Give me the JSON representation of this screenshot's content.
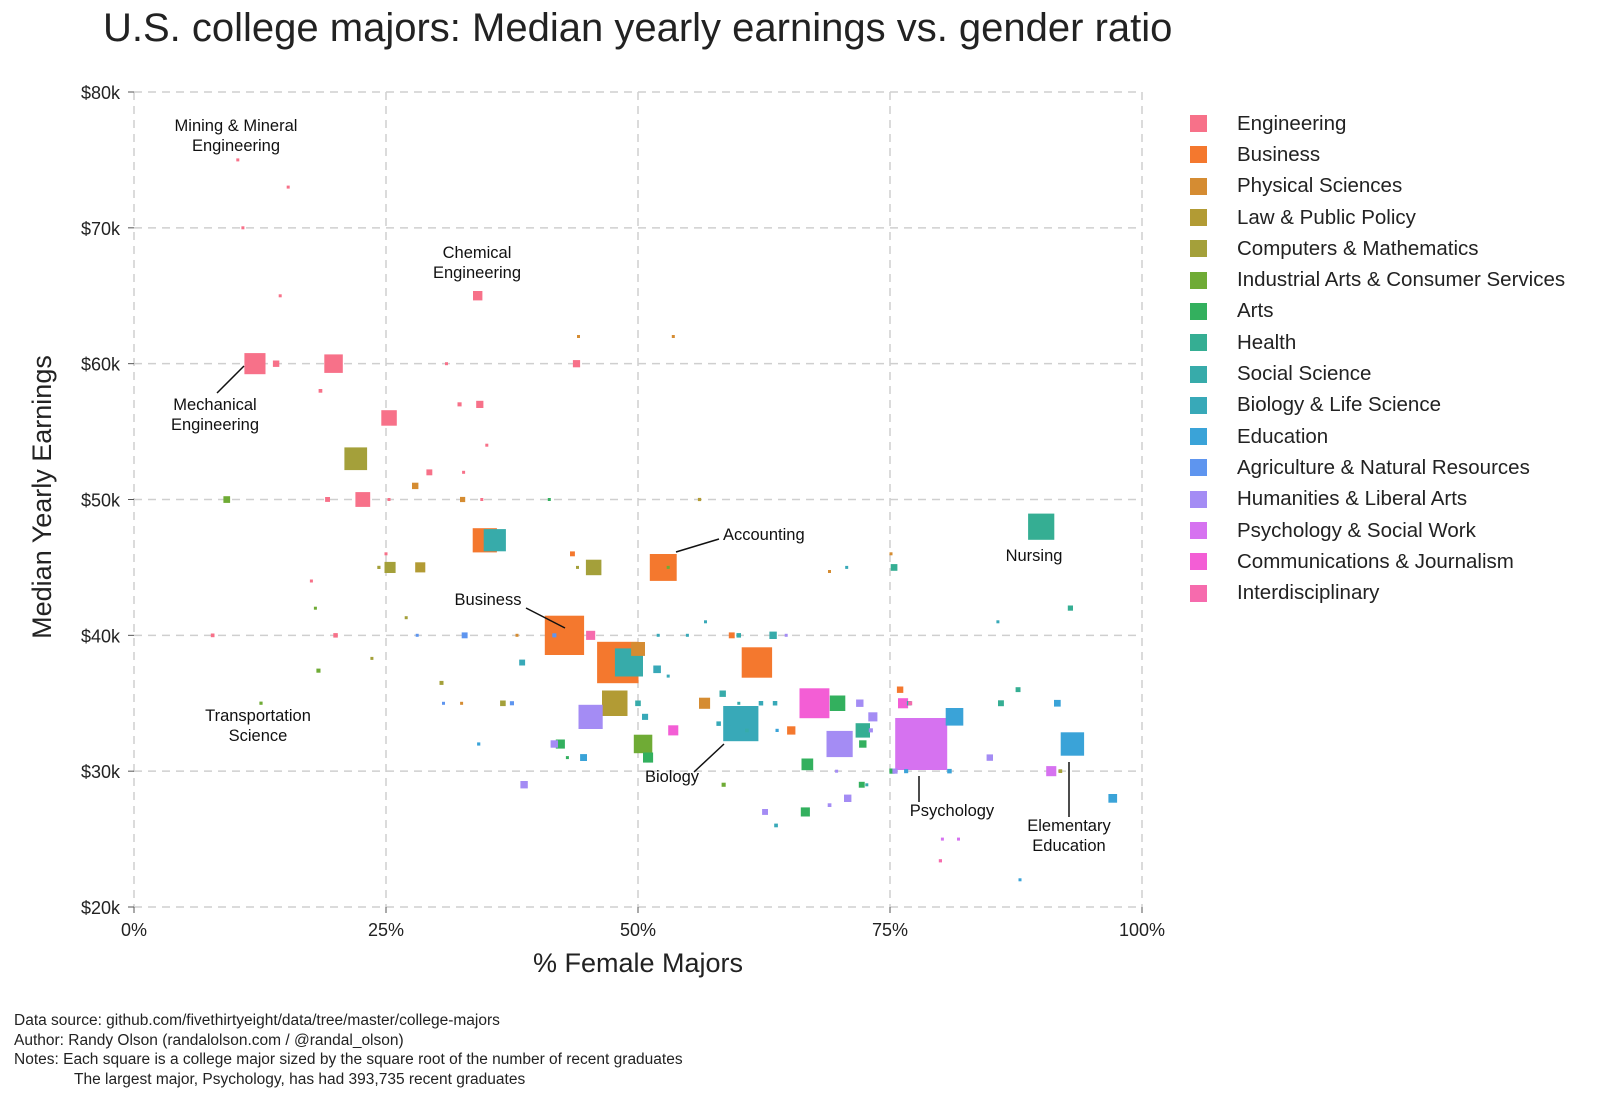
{
  "chart_data": {
    "type": "scatter",
    "title": "U.S. college majors: Median yearly earnings vs. gender ratio",
    "xlabel": "% Female Majors",
    "ylabel": "Median Yearly Earnings",
    "xlim": [
      0,
      100
    ],
    "ylim": [
      20000,
      80000
    ],
    "x_ticks": [
      0,
      25,
      50,
      75,
      100
    ],
    "x_tick_labels": [
      "0%",
      "25%",
      "50%",
      "75%",
      "100%"
    ],
    "y_ticks": [
      20000,
      30000,
      40000,
      50000,
      60000,
      70000,
      80000
    ],
    "y_tick_labels": [
      "$20k",
      "$30k",
      "$40k",
      "$50k",
      "$60k",
      "$70k",
      "$80k"
    ],
    "grid": true,
    "legend_position": "right",
    "size_encoding": "square side proportional to square root of recent graduates",
    "categories": [
      {
        "name": "Engineering",
        "color": "#f77189"
      },
      {
        "name": "Business",
        "color": "#f4782e"
      },
      {
        "name": "Physical Sciences",
        "color": "#d58c32"
      },
      {
        "name": "Law & Public Policy",
        "color": "#b29b34"
      },
      {
        "name": "Computers & Mathematics",
        "color": "#a4a03a"
      },
      {
        "name": "Industrial Arts & Consumer Services",
        "color": "#6fab35"
      },
      {
        "name": "Arts",
        "color": "#33b05e"
      },
      {
        "name": "Health",
        "color": "#35ae93"
      },
      {
        "name": "Social Science",
        "color": "#37abaa"
      },
      {
        "name": "Biology & Life Science",
        "color": "#38a9b8"
      },
      {
        "name": "Education",
        "color": "#3aa3d8"
      },
      {
        "name": "Agriculture & Natural Resources",
        "color": "#5e95ef"
      },
      {
        "name": "Humanities & Liberal Arts",
        "color": "#a48cf4"
      },
      {
        "name": "Psychology & Social Work",
        "color": "#d672f0"
      },
      {
        "name": "Communications & Journalism",
        "color": "#f35ed5"
      },
      {
        "name": "Interdisciplinary",
        "color": "#f66bad"
      }
    ],
    "points": [
      {
        "x": 10.3,
        "y": 75000,
        "cat": 0,
        "grads": 300
      },
      {
        "x": 15.3,
        "y": 73000,
        "cat": 0,
        "grads": 250
      },
      {
        "x": 10.8,
        "y": 70000,
        "cat": 0,
        "grads": 500
      },
      {
        "x": 14.5,
        "y": 65000,
        "cat": 0,
        "grads": 600
      },
      {
        "x": 34.1,
        "y": 65000,
        "cat": 0,
        "grads": 13000
      },
      {
        "x": 44.1,
        "y": 62000,
        "cat": 2,
        "grads": 900
      },
      {
        "x": 53.5,
        "y": 62000,
        "cat": 2,
        "grads": 600
      },
      {
        "x": 12.0,
        "y": 60000,
        "cat": 0,
        "grads": 65000
      },
      {
        "x": 14.1,
        "y": 60000,
        "cat": 0,
        "grads": 6000
      },
      {
        "x": 19.8,
        "y": 60000,
        "cat": 0,
        "grads": 50000
      },
      {
        "x": 31.0,
        "y": 60000,
        "cat": 0,
        "grads": 1000
      },
      {
        "x": 43.9,
        "y": 60000,
        "cat": 0,
        "grads": 7500
      },
      {
        "x": 18.5,
        "y": 58000,
        "cat": 0,
        "grads": 2000
      },
      {
        "x": 32.3,
        "y": 57000,
        "cat": 0,
        "grads": 2500
      },
      {
        "x": 34.3,
        "y": 57000,
        "cat": 0,
        "grads": 7500
      },
      {
        "x": 25.3,
        "y": 56000,
        "cat": 0,
        "grads": 35000
      },
      {
        "x": 35.0,
        "y": 54000,
        "cat": 0,
        "grads": 800
      },
      {
        "x": 22.0,
        "y": 53000,
        "cat": 4,
        "grads": 75000
      },
      {
        "x": 29.3,
        "y": 52000,
        "cat": 0,
        "grads": 5000
      },
      {
        "x": 32.7,
        "y": 52000,
        "cat": 0,
        "grads": 1000
      },
      {
        "x": 27.9,
        "y": 51000,
        "cat": 2,
        "grads": 6000
      },
      {
        "x": 9.2,
        "y": 50000,
        "cat": 5,
        "grads": 6500
      },
      {
        "x": 19.2,
        "y": 50000,
        "cat": 0,
        "grads": 3500
      },
      {
        "x": 22.7,
        "y": 50000,
        "cat": 0,
        "grads": 32000
      },
      {
        "x": 25.3,
        "y": 50000,
        "cat": 0,
        "grads": 1000
      },
      {
        "x": 32.6,
        "y": 50000,
        "cat": 2,
        "grads": 4000
      },
      {
        "x": 34.5,
        "y": 50000,
        "cat": 0,
        "grads": 1000
      },
      {
        "x": 41.2,
        "y": 50000,
        "cat": 6,
        "grads": 800
      },
      {
        "x": 56.1,
        "y": 50000,
        "cat": 3,
        "grads": 1500
      },
      {
        "x": 34.8,
        "y": 47000,
        "cat": 1,
        "grads": 85000
      },
      {
        "x": 35.8,
        "y": 47000,
        "cat": 8,
        "grads": 72000
      },
      {
        "x": 52.5,
        "y": 45000,
        "cat": 1,
        "grads": 105000
      },
      {
        "x": 25.0,
        "y": 46000,
        "cat": 0,
        "grads": 1200
      },
      {
        "x": 43.5,
        "y": 46000,
        "cat": 1,
        "grads": 3500
      },
      {
        "x": 75.1,
        "y": 46000,
        "cat": 2,
        "grads": 500
      },
      {
        "x": 90.0,
        "y": 48000,
        "cat": 7,
        "grads": 100000
      },
      {
        "x": 24.3,
        "y": 45000,
        "cat": 4,
        "grads": 1500
      },
      {
        "x": 25.4,
        "y": 45000,
        "cat": 4,
        "grads": 18000
      },
      {
        "x": 28.4,
        "y": 45000,
        "cat": 3,
        "grads": 15000
      },
      {
        "x": 44.0,
        "y": 45000,
        "cat": 4,
        "grads": 1000
      },
      {
        "x": 45.6,
        "y": 45000,
        "cat": 4,
        "grads": 35000
      },
      {
        "x": 53.0,
        "y": 45000,
        "cat": 5,
        "grads": 700
      },
      {
        "x": 69.0,
        "y": 44700,
        "cat": 2,
        "grads": 600
      },
      {
        "x": 70.7,
        "y": 45000,
        "cat": 9,
        "grads": 300
      },
      {
        "x": 75.4,
        "y": 45000,
        "cat": 7,
        "grads": 6500
      },
      {
        "x": 17.6,
        "y": 44000,
        "cat": 0,
        "grads": 800
      },
      {
        "x": 18.0,
        "y": 42000,
        "cat": 5,
        "grads": 200
      },
      {
        "x": 27.0,
        "y": 41300,
        "cat": 4,
        "grads": 1200
      },
      {
        "x": 56.7,
        "y": 41000,
        "cat": 9,
        "grads": 700
      },
      {
        "x": 85.7,
        "y": 41000,
        "cat": 9,
        "grads": 300
      },
      {
        "x": 92.9,
        "y": 42000,
        "cat": 7,
        "grads": 4000
      },
      {
        "x": 7.8,
        "y": 40000,
        "cat": 0,
        "grads": 2000
      },
      {
        "x": 20.0,
        "y": 40000,
        "cat": 0,
        "grads": 3000
      },
      {
        "x": 28.1,
        "y": 40000,
        "cat": 11,
        "grads": 500
      },
      {
        "x": 32.8,
        "y": 40000,
        "cat": 11,
        "grads": 5000
      },
      {
        "x": 38.0,
        "y": 40000,
        "cat": 2,
        "grads": 400
      },
      {
        "x": 41.7,
        "y": 40000,
        "cat": 11,
        "grads": 2500
      },
      {
        "x": 42.7,
        "y": 40000,
        "cat": 1,
        "grads": 225000
      },
      {
        "x": 43.8,
        "y": 40000,
        "cat": 1,
        "grads": 700
      },
      {
        "x": 45.3,
        "y": 40000,
        "cat": 15,
        "grads": 12000
      },
      {
        "x": 52.0,
        "y": 40000,
        "cat": 9,
        "grads": 800
      },
      {
        "x": 54.9,
        "y": 40000,
        "cat": 9,
        "grads": 800
      },
      {
        "x": 59.3,
        "y": 40000,
        "cat": 1,
        "grads": 5000
      },
      {
        "x": 60.0,
        "y": 40000,
        "cat": 8,
        "grads": 3000
      },
      {
        "x": 63.4,
        "y": 40000,
        "cat": 8,
        "grads": 8000
      },
      {
        "x": 64.7,
        "y": 40000,
        "cat": 12,
        "grads": 400
      },
      {
        "x": 23.6,
        "y": 38300,
        "cat": 4,
        "grads": 700
      },
      {
        "x": 38.5,
        "y": 38000,
        "cat": 9,
        "grads": 5000
      },
      {
        "x": 48.0,
        "y": 38000,
        "cat": 1,
        "grads": 250000
      },
      {
        "x": 50.0,
        "y": 39000,
        "cat": 2,
        "grads": 28000
      },
      {
        "x": 49.1,
        "y": 38000,
        "cat": 8,
        "grads": 115000
      },
      {
        "x": 51.9,
        "y": 37500,
        "cat": 9,
        "grads": 8500
      },
      {
        "x": 53.0,
        "y": 37000,
        "cat": 9,
        "grads": 400
      },
      {
        "x": 61.8,
        "y": 38000,
        "cat": 1,
        "grads": 135000
      },
      {
        "x": 18.3,
        "y": 37400,
        "cat": 5,
        "grads": 2500
      },
      {
        "x": 30.5,
        "y": 36500,
        "cat": 4,
        "grads": 2300
      },
      {
        "x": 12.6,
        "y": 35000,
        "cat": 5,
        "grads": 1500
      },
      {
        "x": 30.7,
        "y": 35000,
        "cat": 11,
        "grads": 300
      },
      {
        "x": 32.5,
        "y": 35000,
        "cat": 2,
        "grads": 1000
      },
      {
        "x": 36.6,
        "y": 35000,
        "cat": 4,
        "grads": 4500
      },
      {
        "x": 37.5,
        "y": 35000,
        "cat": 11,
        "grads": 2500
      },
      {
        "x": 47.7,
        "y": 35000,
        "cat": 3,
        "grads": 95000
      },
      {
        "x": 50.0,
        "y": 35000,
        "cat": 8,
        "grads": 4500
      },
      {
        "x": 56.6,
        "y": 35000,
        "cat": 2,
        "grads": 18000
      },
      {
        "x": 58.4,
        "y": 35700,
        "cat": 8,
        "grads": 6000
      },
      {
        "x": 60.0,
        "y": 35000,
        "cat": 8,
        "grads": 800
      },
      {
        "x": 62.2,
        "y": 35000,
        "cat": 9,
        "grads": 3000
      },
      {
        "x": 63.6,
        "y": 35000,
        "cat": 9,
        "grads": 3000
      },
      {
        "x": 67.5,
        "y": 35000,
        "cat": 14,
        "grads": 130000
      },
      {
        "x": 69.8,
        "y": 35000,
        "cat": 6,
        "grads": 35000
      },
      {
        "x": 72.0,
        "y": 35000,
        "cat": 12,
        "grads": 8000
      },
      {
        "x": 73.3,
        "y": 34000,
        "cat": 12,
        "grads": 12000
      },
      {
        "x": 76.0,
        "y": 36000,
        "cat": 1,
        "grads": 6000
      },
      {
        "x": 76.3,
        "y": 35000,
        "cat": 14,
        "grads": 15000
      },
      {
        "x": 77.0,
        "y": 35000,
        "cat": 15,
        "grads": 2500
      },
      {
        "x": 76.9,
        "y": 35000,
        "cat": 8,
        "grads": 3000
      },
      {
        "x": 81.4,
        "y": 34000,
        "cat": 10,
        "grads": 45000
      },
      {
        "x": 86.0,
        "y": 35000,
        "cat": 7,
        "grads": 5000
      },
      {
        "x": 87.7,
        "y": 36000,
        "cat": 7,
        "grads": 3500
      },
      {
        "x": 91.6,
        "y": 35000,
        "cat": 10,
        "grads": 6500
      },
      {
        "x": 50.7,
        "y": 34000,
        "cat": 9,
        "grads": 5500
      },
      {
        "x": 45.3,
        "y": 34000,
        "cat": 12,
        "grads": 85000
      },
      {
        "x": 58.0,
        "y": 33500,
        "cat": 9,
        "grads": 3000
      },
      {
        "x": 59.0,
        "y": 33500,
        "cat": 9,
        "grads": 3000
      },
      {
        "x": 60.2,
        "y": 33500,
        "cat": 9,
        "grads": 180000
      },
      {
        "x": 60.8,
        "y": 33000,
        "cat": 8,
        "grads": 2000
      },
      {
        "x": 63.8,
        "y": 33000,
        "cat": 10,
        "grads": 1500
      },
      {
        "x": 65.2,
        "y": 33000,
        "cat": 1,
        "grads": 10000
      },
      {
        "x": 72.3,
        "y": 33000,
        "cat": 7,
        "grads": 30000
      },
      {
        "x": 73.1,
        "y": 33000,
        "cat": 12,
        "grads": 2500
      },
      {
        "x": 34.2,
        "y": 32000,
        "cat": 10,
        "grads": 1500
      },
      {
        "x": 41.7,
        "y": 32000,
        "cat": 12,
        "grads": 8000
      },
      {
        "x": 42.3,
        "y": 32000,
        "cat": 6,
        "grads": 12000
      },
      {
        "x": 50.5,
        "y": 32000,
        "cat": 5,
        "grads": 50000
      },
      {
        "x": 53.5,
        "y": 33000,
        "cat": 14,
        "grads": 15000
      },
      {
        "x": 70.0,
        "y": 32000,
        "cat": 12,
        "grads": 100000
      },
      {
        "x": 72.3,
        "y": 32000,
        "cat": 6,
        "grads": 8000
      },
      {
        "x": 43.0,
        "y": 31000,
        "cat": 6,
        "grads": 400
      },
      {
        "x": 44.6,
        "y": 31000,
        "cat": 10,
        "grads": 7000
      },
      {
        "x": 51.0,
        "y": 31000,
        "cat": 6,
        "grads": 15000
      },
      {
        "x": 66.8,
        "y": 30500,
        "cat": 6,
        "grads": 20000
      },
      {
        "x": 78.1,
        "y": 32000,
        "cat": 13,
        "grads": 393735
      },
      {
        "x": 84.9,
        "y": 31000,
        "cat": 12,
        "grads": 6000
      },
      {
        "x": 93.1,
        "y": 32000,
        "cat": 10,
        "grads": 80000
      },
      {
        "x": 75.2,
        "y": 30000,
        "cat": 6,
        "grads": 4000
      },
      {
        "x": 75.5,
        "y": 30000,
        "cat": 12,
        "grads": 4000
      },
      {
        "x": 76.6,
        "y": 30000,
        "cat": 10,
        "grads": 2500
      },
      {
        "x": 80.9,
        "y": 30000,
        "cat": 10,
        "grads": 3000
      },
      {
        "x": 91.0,
        "y": 30000,
        "cat": 13,
        "grads": 15000
      },
      {
        "x": 91.9,
        "y": 30000,
        "cat": 4,
        "grads": 2000
      },
      {
        "x": 69.7,
        "y": 30000,
        "cat": 12,
        "grads": 1000
      },
      {
        "x": 38.7,
        "y": 29000,
        "cat": 12,
        "grads": 8000
      },
      {
        "x": 58.5,
        "y": 29000,
        "cat": 5,
        "grads": 2500
      },
      {
        "x": 72.2,
        "y": 29000,
        "cat": 6,
        "grads": 5000
      },
      {
        "x": 72.7,
        "y": 29000,
        "cat": 8,
        "grads": 300
      },
      {
        "x": 70.8,
        "y": 28000,
        "cat": 12,
        "grads": 8000
      },
      {
        "x": 97.1,
        "y": 28000,
        "cat": 10,
        "grads": 11000
      },
      {
        "x": 62.6,
        "y": 27000,
        "cat": 12,
        "grads": 5000
      },
      {
        "x": 66.6,
        "y": 27000,
        "cat": 6,
        "grads": 12000
      },
      {
        "x": 69.0,
        "y": 27500,
        "cat": 12,
        "grads": 2000
      },
      {
        "x": 63.7,
        "y": 26000,
        "cat": 9,
        "grads": 2000
      },
      {
        "x": 80.2,
        "y": 25000,
        "cat": 13,
        "grads": 700
      },
      {
        "x": 81.8,
        "y": 25000,
        "cat": 13,
        "grads": 700
      },
      {
        "x": 80.0,
        "y": 23400,
        "cat": 15,
        "grads": 1500
      },
      {
        "x": 87.9,
        "y": 22000,
        "cat": 10,
        "grads": 300
      }
    ],
    "annotations": [
      {
        "lines": [
          "Mining & Mineral",
          "Engineering"
        ],
        "x": 10.3,
        "y": 75000
      },
      {
        "lines": [
          "Chemical",
          "Engineering"
        ],
        "x": 34.1,
        "y": 65000
      },
      {
        "lines": [
          "Mechanical",
          "Engineering"
        ],
        "x": 12.0,
        "y": 60000
      },
      {
        "lines": [
          "Accounting"
        ],
        "x": 52.5,
        "y": 45000
      },
      {
        "lines": [
          "Nursing"
        ],
        "x": 90.0,
        "y": 48000
      },
      {
        "lines": [
          "Business"
        ],
        "x": 42.7,
        "y": 40000
      },
      {
        "lines": [
          "Transportation",
          "Science"
        ],
        "x": 12.6,
        "y": 35000
      },
      {
        "lines": [
          "Biology"
        ],
        "x": 60.2,
        "y": 33500
      },
      {
        "lines": [
          "Psychology"
        ],
        "x": 78.1,
        "y": 32000
      },
      {
        "lines": [
          "Elementary",
          "Education"
        ],
        "x": 93.1,
        "y": 32000
      }
    ]
  },
  "footer": {
    "source": "Data source: github.com/fivethirtyeight/data/tree/master/college-majors",
    "author": "Author: Randy Olson (randalolson.com / @randal_olson)",
    "notes1": "Notes: Each square is a college major sized by the square root of the number of recent graduates",
    "notes2": "The largest major, Psychology, has had 393,735 recent graduates"
  }
}
